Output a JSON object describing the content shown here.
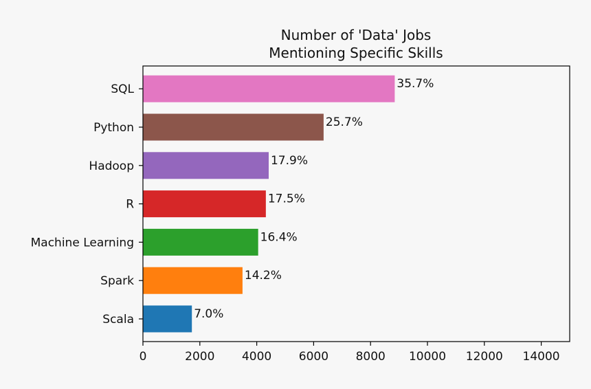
{
  "chart_data": {
    "type": "bar",
    "orientation": "horizontal",
    "title_lines": [
      "Number of 'Data' Jobs",
      "Mentioning Specific Skills"
    ],
    "categories": [
      "Scala",
      "Spark",
      "Machine Learning",
      "R",
      "Hadoop",
      "Python",
      "SQL"
    ],
    "values": [
      1720,
      3500,
      4050,
      4320,
      4420,
      6350,
      8850
    ],
    "value_labels": [
      "7.0%",
      "14.2%",
      "16.4%",
      "17.5%",
      "17.9%",
      "25.7%",
      "35.7%"
    ],
    "colors": [
      "#1f77b4",
      "#ff7f0e",
      "#2ca02c",
      "#d62728",
      "#9467bd",
      "#8c564b",
      "#e377c2"
    ],
    "xlim": [
      0,
      15000
    ],
    "xticks": [
      0,
      2000,
      4000,
      6000,
      8000,
      10000,
      12000,
      14000
    ],
    "xlabel": "",
    "ylabel": "",
    "grid": false,
    "legend": "none"
  }
}
